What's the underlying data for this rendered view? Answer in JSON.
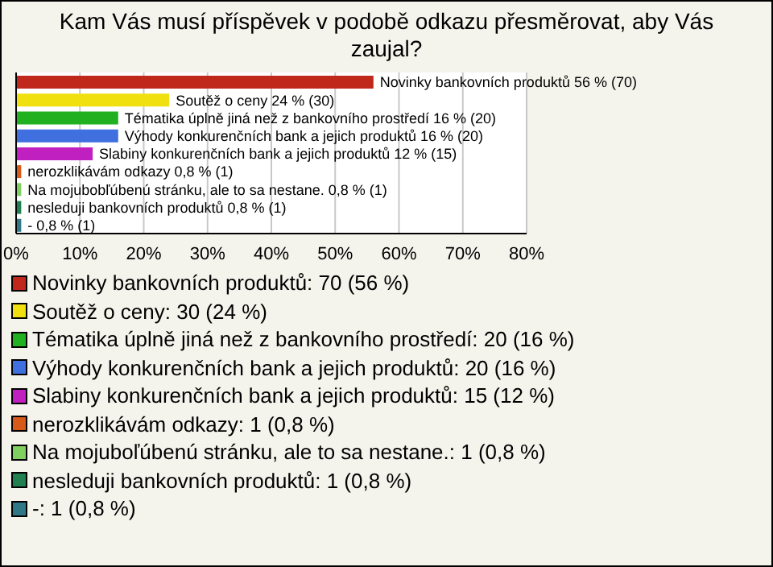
{
  "chart_data": {
    "type": "bar",
    "orientation": "horizontal",
    "stacked": true,
    "title": "Kam Vás musí příspěvek v podobě odkazu přesměrovat, aby Vás zaujal?",
    "categories": [
      null,
      null,
      null,
      null,
      null,
      null,
      null,
      null,
      null
    ],
    "series": [
      {
        "name": "Novinky bankovních produktů: 70 (56 %)",
        "color": "#c0281c",
        "values": [
          56,
          null,
          null,
          null,
          null,
          null,
          null,
          null,
          null
        ],
        "value_labels": [
          "Novinky bankovních produktů 56 % (70)",
          null,
          null,
          null,
          null,
          null,
          null,
          null,
          null
        ]
      },
      {
        "name": "Soutěž o ceny: 30 (24 %)",
        "color": "#f0e010",
        "values": [
          null,
          24,
          null,
          null,
          null,
          null,
          null,
          null,
          null
        ],
        "value_labels": [
          null,
          "Soutěž o ceny 24 % (30)",
          null,
          null,
          null,
          null,
          null,
          null,
          null
        ]
      },
      {
        "name": "Tématika úplně jiná než z bankovního prostředí: 20 (16 %)",
        "color": "#20b020",
        "values": [
          null,
          null,
          16,
          null,
          null,
          null,
          null,
          null,
          null
        ],
        "value_labels": [
          null,
          null,
          "Tématika úplně jiná než z bankovního prostředí 16 % (20)",
          null,
          null,
          null,
          null,
          null,
          null
        ]
      },
      {
        "name": "Výhody konkurenčních bank a jejich produktů: 20 (16 %)",
        "color": "#4070e0",
        "values": [
          null,
          null,
          null,
          16,
          null,
          null,
          null,
          null,
          null
        ],
        "value_labels": [
          null,
          null,
          null,
          "Výhody konkurenčních bank a jejich produktů 16 % (20)",
          null,
          null,
          null,
          null,
          null
        ]
      },
      {
        "name": "Slabiny konkurenčních bank a jejich produktů: 15 (12 %)",
        "color": "#c020c0",
        "values": [
          null,
          null,
          null,
          null,
          12,
          null,
          null,
          null,
          null
        ],
        "value_labels": [
          null,
          null,
          null,
          null,
          "Slabiny konkurenčních bank a jejich produktů 12 % (15)",
          null,
          null,
          null,
          null
        ]
      },
      {
        "name": "nerozklikávám odkazy: 1 (0,8 %)",
        "color": "#d85a18",
        "values": [
          null,
          null,
          null,
          null,
          null,
          0.8,
          null,
          null,
          null
        ],
        "value_labels": [
          null,
          null,
          null,
          null,
          null,
          "nerozklikávám odkazy 0,8 % (1)",
          null,
          null,
          null
        ]
      },
      {
        "name": "Na mojuboľúbenú stránku, ale to sa nestane.: 1 (0,8 %)",
        "color": "#80d060",
        "values": [
          null,
          null,
          null,
          null,
          null,
          null,
          0.8,
          null,
          null
        ],
        "value_labels": [
          null,
          null,
          null,
          null,
          null,
          null,
          "Na mojubobľúbenú stránku, ale to sa nestane. 0,8 % (1)",
          null,
          null
        ]
      },
      {
        "name": "nesleduji bankovních produktů: 1 (0,8 %)",
        "color": "#208050",
        "values": [
          null,
          null,
          null,
          null,
          null,
          null,
          null,
          0.8,
          null
        ],
        "value_labels": [
          null,
          null,
          null,
          null,
          null,
          null,
          null,
          "nesleduji bankovních produktů 0,8 % (1)",
          null
        ]
      },
      {
        "name": "-: 1 (0,8 %)",
        "color": "#307888",
        "values": [
          null,
          null,
          null,
          null,
          null,
          null,
          null,
          null,
          0.8
        ],
        "value_labels": [
          null,
          null,
          null,
          null,
          null,
          null,
          null,
          null,
          "- 0,8 % (1)"
        ]
      }
    ],
    "xlim": [
      0,
      80
    ],
    "xticks": [
      {
        "value": 0,
        "label": "0%"
      },
      {
        "value": 10,
        "label": "10%"
      },
      {
        "value": 20,
        "label": "20%"
      },
      {
        "value": 30,
        "label": "30%"
      },
      {
        "value": 40,
        "label": "40%"
      },
      {
        "value": 50,
        "label": "50%"
      },
      {
        "value": 60,
        "label": "60%"
      },
      {
        "value": 70,
        "label": "70%"
      },
      {
        "value": 80,
        "label": "80%"
      }
    ],
    "grid": "x",
    "legend": "bottom",
    "tick_labels": "x"
  }
}
